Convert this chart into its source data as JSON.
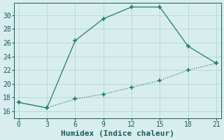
{
  "line1_x": [
    0,
    3,
    6,
    9,
    12,
    15,
    18,
    21
  ],
  "line1_y": [
    17.3,
    16.5,
    26.3,
    29.5,
    31.2,
    31.2,
    25.5,
    23.0
  ],
  "line2_x": [
    0,
    3,
    6,
    9,
    12,
    15,
    18,
    21
  ],
  "line2_y": [
    17.3,
    16.5,
    17.8,
    18.5,
    19.5,
    20.5,
    22.0,
    23.0
  ],
  "line_color": "#217a6e",
  "bg_color": "#d8eeee",
  "grid_color": "#b8d8d8",
  "xlabel": "Humidex (Indice chaleur)",
  "xlim": [
    -0.5,
    21.5
  ],
  "ylim": [
    15.0,
    31.8
  ],
  "xticks": [
    0,
    3,
    6,
    9,
    12,
    15,
    18,
    21
  ],
  "yticks": [
    16,
    18,
    20,
    22,
    24,
    26,
    28,
    30
  ],
  "font_color": "#1a5a5a",
  "tick_fontsize": 7,
  "label_fontsize": 8
}
